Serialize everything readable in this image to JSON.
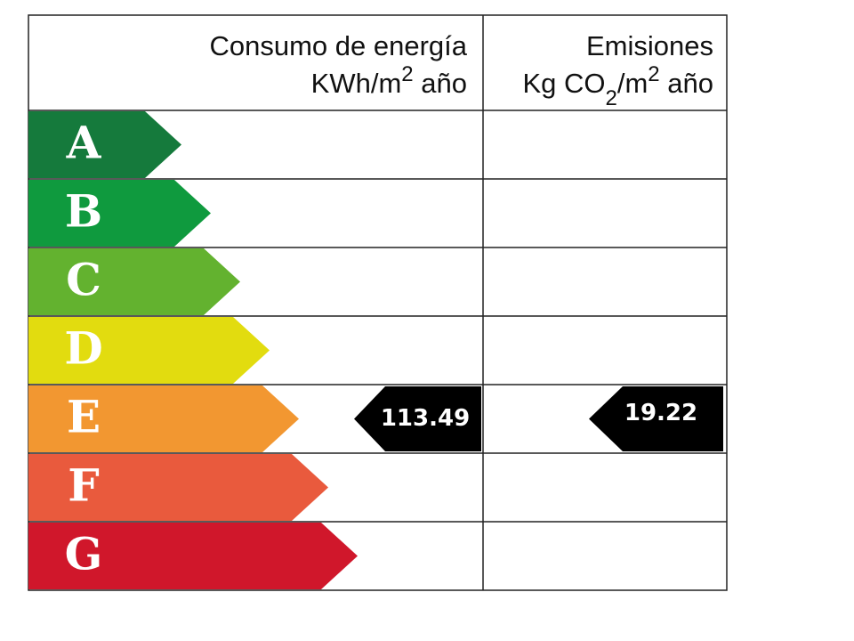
{
  "header": {
    "energy": {
      "title": "Consumo de energía",
      "unit_base": "KWh/m",
      "unit_sup": "2",
      "unit_tail": " año"
    },
    "emissions": {
      "title": "Emisiones",
      "unit_base": "Kg CO",
      "unit_sub": "2",
      "unit_mid": "/m",
      "unit_sup": "2",
      "unit_tail": " año"
    }
  },
  "ratings": [
    {
      "letter": "A",
      "color": "#157a3c"
    },
    {
      "letter": "B",
      "color": "#0f9a3e"
    },
    {
      "letter": "C",
      "color": "#63b22f"
    },
    {
      "letter": "D",
      "color": "#e2dc0f"
    },
    {
      "letter": "E",
      "color": "#f29731",
      "energy": 113.49,
      "emissions": 19.22
    },
    {
      "letter": "F",
      "color": "#e95a3d"
    },
    {
      "letter": "G",
      "color": "#d0172b"
    }
  ]
}
